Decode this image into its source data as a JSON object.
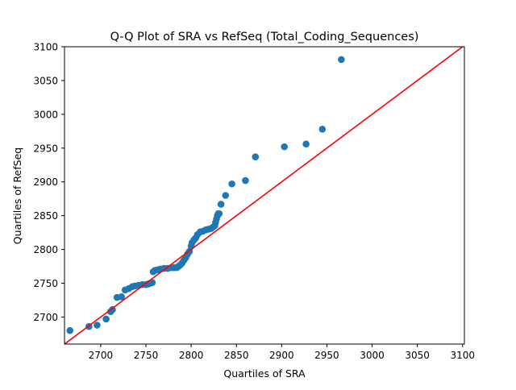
{
  "chart_data": {
    "type": "scatter",
    "title": "Q-Q Plot of SRA vs RefSeq (Total_Coding_Sequences)",
    "xlabel": "Quartiles of SRA",
    "ylabel": "Quartiles of RefSeq",
    "xlim": [
      2660,
      3102
    ],
    "ylim": [
      2660,
      3100
    ],
    "xticks": [
      2700,
      2750,
      2800,
      2850,
      2900,
      2950,
      3000,
      3050,
      3100
    ],
    "yticks": [
      2700,
      2750,
      2800,
      2850,
      2900,
      2950,
      3000,
      3050,
      3100
    ],
    "grid": false,
    "colors": {
      "points": "#1f77b4",
      "reference_line": "#ff0000"
    },
    "reference_line": {
      "x": [
        2660,
        3100
      ],
      "y": [
        2660,
        3100
      ]
    },
    "series": [
      {
        "x": [
          2666,
          2687,
          2696,
          2706,
          2711,
          2713,
          2718,
          2723,
          2727,
          2731,
          2735,
          2738,
          2742,
          2746,
          2750,
          2753,
          2755,
          2757,
          2758,
          2760,
          2763,
          2766,
          2770,
          2774,
          2778,
          2781,
          2784,
          2786,
          2788,
          2790,
          2792,
          2794,
          2796,
          2798,
          2800,
          2801,
          2803,
          2805,
          2807,
          2810,
          2813,
          2816,
          2819,
          2822,
          2824,
          2826,
          2827,
          2828,
          2829,
          2830,
          2831,
          2833,
          2838,
          2845,
          2860,
          2871,
          2903,
          2927,
          2945,
          2966
        ],
        "y": [
          2680,
          2686,
          2688,
          2697,
          2708,
          2711,
          2729,
          2730,
          2740,
          2742,
          2745,
          2746,
          2747,
          2748,
          2748,
          2749,
          2750,
          2751,
          2767,
          2769,
          2770,
          2771,
          2772,
          2772,
          2773,
          2773,
          2773,
          2775,
          2777,
          2780,
          2784,
          2788,
          2793,
          2797,
          2805,
          2810,
          2814,
          2817,
          2822,
          2826,
          2827,
          2829,
          2830,
          2831,
          2833,
          2835,
          2840,
          2845,
          2850,
          2853,
          2853,
          2867,
          2880,
          2897,
          2902,
          2937,
          2952,
          2956,
          2978,
          3081
        ]
      }
    ]
  }
}
